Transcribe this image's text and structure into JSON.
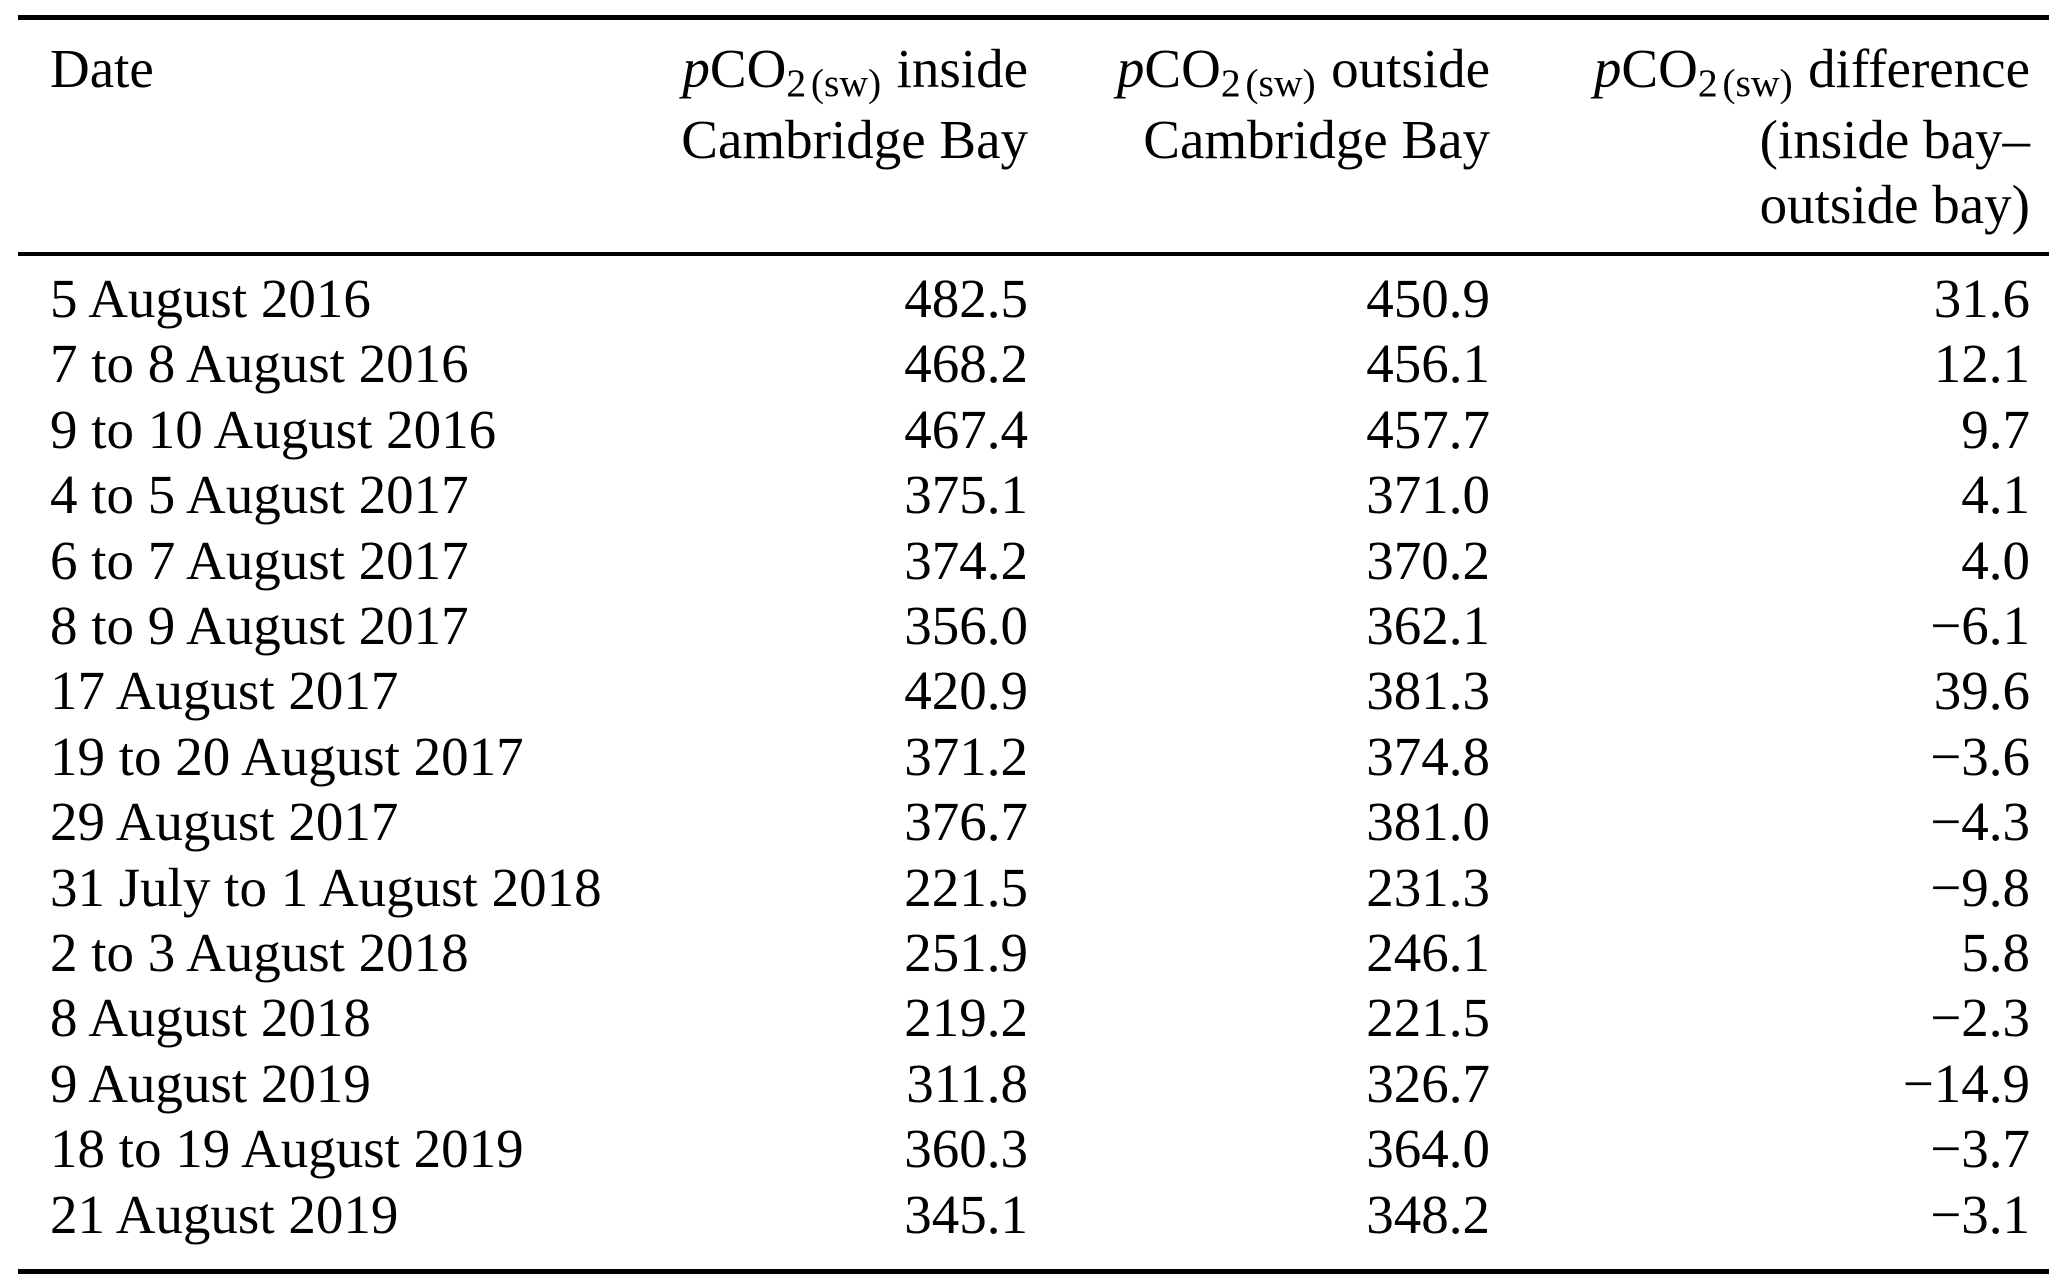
{
  "pco2": {
    "p": "p",
    "co": "CO",
    "sub": "2",
    "sw": "(sw)"
  },
  "header": {
    "date": "Date",
    "inside_rest": "inside",
    "inside_line2": "Cambridge Bay",
    "outside_rest": "outside",
    "outside_line2": "Cambridge Bay",
    "diff_rest": "difference",
    "diff_line2": "(inside bay–",
    "diff_line3": "outside bay)"
  },
  "rows": [
    {
      "date": "5 August 2016",
      "inside": "482.5",
      "outside": "450.9",
      "diff": "31.6"
    },
    {
      "date": "7 to 8 August 2016",
      "inside": "468.2",
      "outside": "456.1",
      "diff": "12.1"
    },
    {
      "date": "9 to 10 August 2016",
      "inside": "467.4",
      "outside": "457.7",
      "diff": "9.7"
    },
    {
      "date": "4 to 5 August 2017",
      "inside": "375.1",
      "outside": "371.0",
      "diff": "4.1"
    },
    {
      "date": "6 to 7 August 2017",
      "inside": "374.2",
      "outside": "370.2",
      "diff": "4.0"
    },
    {
      "date": "8 to 9 August 2017",
      "inside": "356.0",
      "outside": "362.1",
      "diff": "−6.1"
    },
    {
      "date": "17 August 2017",
      "inside": "420.9",
      "outside": "381.3",
      "diff": "39.6"
    },
    {
      "date": "19 to 20 August 2017",
      "inside": "371.2",
      "outside": "374.8",
      "diff": "−3.6"
    },
    {
      "date": "29 August 2017",
      "inside": "376.7",
      "outside": "381.0",
      "diff": "−4.3"
    },
    {
      "date": "31 July to 1 August 2018",
      "inside": "221.5",
      "outside": "231.3",
      "diff": "−9.8"
    },
    {
      "date": "2 to 3 August 2018",
      "inside": "251.9",
      "outside": "246.1",
      "diff": "5.8"
    },
    {
      "date": "8 August 2018",
      "inside": "219.2",
      "outside": "221.5",
      "diff": "−2.3"
    },
    {
      "date": "9 August 2019",
      "inside": "311.8",
      "outside": "326.7",
      "diff": "−14.9"
    },
    {
      "date": "18 to 19 August 2019",
      "inside": "360.3",
      "outside": "364.0",
      "diff": "−3.7"
    },
    {
      "date": "21 August 2019",
      "inside": "345.1",
      "outside": "348.2",
      "diff": "−3.1"
    }
  ]
}
